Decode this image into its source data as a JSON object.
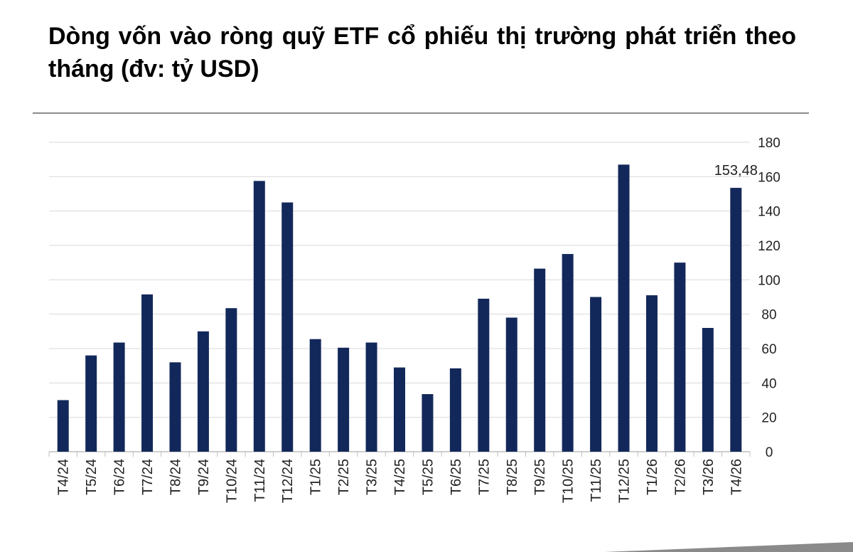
{
  "title": "Dòng vốn vào ròng quỹ ETF cổ phiếu thị trường phát triển theo tháng (đv: tỷ USD)",
  "colors": {
    "bar": "#13285a",
    "grid": "#d9d9d9",
    "axis": "#bfbfbf",
    "rule": "#8c8c8c"
  },
  "chart_data": {
    "type": "bar",
    "title": "Dòng vốn vào ròng quỹ ETF cổ phiếu thị trường phát triển theo tháng (đv: tỷ USD)",
    "xlabel": "",
    "ylabel": "",
    "categories": [
      "T4/24",
      "T5/24",
      "T6/24",
      "T7/24",
      "T8/24",
      "T9/24",
      "T10/24",
      "T11/24",
      "T12/24",
      "T1/25",
      "T2/25",
      "T3/25",
      "T4/25",
      "T5/25",
      "T6/25",
      "T7/25",
      "T8/25",
      "T9/25",
      "T10/25",
      "T11/25",
      "T12/25",
      "T1/26",
      "T2/26",
      "T3/26",
      "T4/26"
    ],
    "values": [
      30,
      56,
      63.5,
      91.5,
      52,
      70,
      83.5,
      157.5,
      145,
      65.5,
      60.5,
      63.5,
      49,
      33.5,
      48.5,
      89,
      78,
      106.5,
      115,
      90,
      167,
      91,
      110,
      72,
      153.48
    ],
    "data_labels": [
      {
        "index": 24,
        "text": "153,48"
      }
    ],
    "ylim": [
      0,
      180
    ],
    "yticks": [
      0,
      20,
      40,
      60,
      80,
      100,
      120,
      140,
      160,
      180
    ],
    "y_axis_position": "right",
    "grid": true,
    "legend": "none"
  }
}
